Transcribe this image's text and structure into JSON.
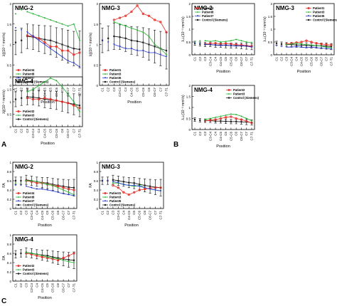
{
  "figure": {
    "panel_labels": [
      "A",
      "B",
      "C"
    ],
    "position_label": "Position",
    "levels": [
      "C1",
      "C2",
      "C3",
      "C3-C4",
      "C4",
      "C4-C5",
      "C5",
      "C5-C6",
      "C6",
      "C6-C7",
      "C7",
      "C7-T1"
    ],
    "colors": {
      "control": "#222222",
      "patient1": "#e8322a",
      "patient2": "#e8322a",
      "patient4": "#e8322a",
      "patient3": "#22b02e",
      "patient8": "#22b02e",
      "patient5": "#2a3ac8",
      "patient7": "#2a3ac8"
    }
  },
  "chart_data": [
    {
      "type": "line",
      "group": "A",
      "title": "NMG-2",
      "ylabel": "λ∥(10⁻³ mm²/s)",
      "xlabel": "Position",
      "ylim": [
        0,
        2
      ],
      "yticks": [
        0,
        0.5,
        1,
        1.5,
        2
      ],
      "legend_position": "bottom-left",
      "categories": [
        "C1",
        "C2",
        "C3",
        "C3-C4",
        "C4",
        "C4-C5",
        "C5",
        "C5-C6",
        "C6",
        "C6-C7",
        "C7",
        "C7-T1"
      ],
      "control": {
        "name": "Control (Siemens)",
        "values": [
          1.05,
          1.1,
          1.2,
          1.18,
          1.15,
          1.12,
          1.1,
          1.05,
          1.0,
          0.95,
          0.9,
          0.88
        ],
        "error": [
          0.3,
          0.3,
          0.3,
          0.3,
          0.32,
          0.34,
          0.35,
          0.36,
          0.38,
          0.4,
          0.42,
          0.45
        ]
      },
      "series": [
        {
          "name": "Patient4",
          "color_key": "patient4",
          "values": [
            null,
            null,
            1.22,
            1.2,
            1.15,
            1.05,
            0.95,
            0.95,
            0.85,
            0.85,
            0.75,
            0.8
          ]
        },
        {
          "name": "Patient8",
          "color_key": "patient8",
          "values": [
            1.75,
            1.85,
            1.8,
            1.75,
            1.7,
            1.65,
            1.6,
            1.55,
            1.5,
            1.45,
            1.5,
            1.1
          ]
        },
        {
          "name": "Patient7",
          "color_key": "patient7",
          "values": [
            1.4,
            1.35,
            1.3,
            1.2,
            1.1,
            1.0,
            0.9,
            0.8,
            0.7,
            0.6,
            0.55,
            0.45
          ]
        }
      ]
    },
    {
      "type": "line",
      "group": "A",
      "title": "NMG-3",
      "ylabel": "λ∥(10⁻³ mm²/s)",
      "xlabel": "Position",
      "ylim": [
        0,
        2
      ],
      "yticks": [
        0,
        0.5,
        1,
        1.5,
        2
      ],
      "legend_position": "bottom-left",
      "categories": [
        "C1",
        "C2",
        "C3",
        "C3-C4",
        "C4",
        "C4-C5",
        "C5",
        "C5-C6",
        "C6",
        "C6-C7",
        "C7",
        "C7-T1"
      ],
      "control": {
        "name": "Control (Siemens)",
        "values": [
          1.1,
          1.15,
          1.2,
          1.18,
          1.15,
          1.1,
          1.08,
          1.05,
          1.0,
          0.95,
          0.9,
          0.85
        ],
        "error": [
          0.3,
          0.3,
          0.32,
          0.3,
          0.32,
          0.34,
          0.35,
          0.36,
          0.38,
          0.4,
          0.42,
          0.45
        ]
      },
      "series": [
        {
          "name": "Patient1",
          "color_key": "patient1",
          "values": [
            null,
            null,
            1.6,
            1.65,
            1.7,
            1.8,
            1.95,
            1.75,
            1.7,
            1.6,
            1.55,
            1.3
          ]
        },
        {
          "name": "Patient3",
          "color_key": "patient3",
          "values": [
            null,
            null,
            1.55,
            1.5,
            1.45,
            1.4,
            1.35,
            1.3,
            1.2,
            1.0,
            0.9,
            0.75
          ]
        },
        {
          "name": "Patient5",
          "color_key": "patient5",
          "values": [
            1.1,
            1.05,
            1.0,
            0.95,
            0.9,
            0.9,
            0.85,
            0.85,
            0.8,
            0.8,
            0.75,
            0.7
          ]
        }
      ]
    },
    {
      "type": "line",
      "group": "A",
      "title": "NMG-4",
      "ylabel": "λ∥(10⁻³ mm²/s)",
      "xlabel": "Position",
      "ylim": [
        0,
        2
      ],
      "yticks": [
        0,
        0.5,
        1,
        1.5,
        2
      ],
      "legend_position": "bottom-left",
      "categories": [
        "C1",
        "C2",
        "C3",
        "C3-C4",
        "C4",
        "C4-C5",
        "C5",
        "C5-C6",
        "C6",
        "C6-C7",
        "C7",
        "C7-T1"
      ],
      "control": {
        "name": "Control (Siemens)",
        "values": [
          1.1,
          1.15,
          1.2,
          1.18,
          1.15,
          1.1,
          1.08,
          1.05,
          1.0,
          0.95,
          0.9,
          0.85
        ],
        "error": [
          0.3,
          0.3,
          0.32,
          0.3,
          0.32,
          0.34,
          0.35,
          0.36,
          0.38,
          0.4,
          0.42,
          0.45
        ]
      },
      "series": [
        {
          "name": "Patient2",
          "color_key": "patient2",
          "values": [
            null,
            null,
            1.15,
            1.1,
            1.1,
            1.15,
            1.1,
            1.05,
            1.0,
            0.95,
            0.85,
            0.75
          ]
        },
        {
          "name": "Patient3",
          "color_key": "patient3",
          "values": [
            null,
            null,
            1.4,
            1.5,
            1.65,
            1.8,
            1.95,
            1.85,
            1.6,
            1.3,
            1.0,
            0.6
          ]
        }
      ]
    },
    {
      "type": "line",
      "group": "B",
      "title": "NMG-2",
      "ylabel": "λ⊥(10⁻³ mm²/s)",
      "xlabel": "Position",
      "ylim": [
        0,
        2
      ],
      "yticks": [
        0,
        0.5,
        1,
        1.5,
        2
      ],
      "legend_position": "top-left",
      "categories": [
        "C1",
        "C2",
        "C3",
        "C3-C4",
        "C4",
        "C4-C5",
        "C5",
        "C5-C6",
        "C6",
        "C6-C7",
        "C7",
        "C7-T1"
      ],
      "control": {
        "name": "Control (Siemens)",
        "values": [
          0.45,
          0.42,
          0.4,
          0.4,
          0.38,
          0.38,
          0.37,
          0.36,
          0.36,
          0.35,
          0.34,
          0.32
        ],
        "error": [
          0.08,
          0.08,
          0.08,
          0.08,
          0.09,
          0.09,
          0.1,
          0.1,
          0.1,
          0.11,
          0.12,
          0.12
        ]
      },
      "series": [
        {
          "name": "Patient4",
          "color_key": "patient4",
          "values": [
            null,
            null,
            0.42,
            0.44,
            0.45,
            0.42,
            0.44,
            0.42,
            0.4,
            0.38,
            0.36,
            0.34
          ]
        },
        {
          "name": "Patient8",
          "color_key": "patient8",
          "values": [
            0.5,
            0.55,
            0.55,
            0.52,
            0.55,
            0.5,
            0.52,
            0.55,
            0.6,
            0.55,
            0.5,
            0.48
          ]
        },
        {
          "name": "Patient7",
          "color_key": "patient7",
          "values": [
            0.45,
            0.42,
            0.4,
            0.4,
            0.38,
            0.36,
            0.38,
            0.36,
            0.34,
            0.35,
            0.34,
            0.3
          ]
        }
      ]
    },
    {
      "type": "line",
      "group": "B",
      "title": "NMG-3",
      "ylabel": "λ⊥(10⁻³ mm²/s)",
      "xlabel": "Position",
      "ylim": [
        0,
        2
      ],
      "yticks": [
        0,
        0.5,
        1,
        1.5,
        2
      ],
      "legend_position": "top-right",
      "categories": [
        "C1",
        "C2",
        "C3",
        "C3-C4",
        "C4",
        "C4-C5",
        "C5",
        "C5-C6",
        "C6",
        "C6-C7",
        "C7",
        "C7-T1"
      ],
      "control": {
        "name": "Control (Siemens)",
        "values": [
          0.45,
          0.42,
          0.4,
          0.4,
          0.38,
          0.38,
          0.37,
          0.36,
          0.36,
          0.35,
          0.34,
          0.32
        ],
        "error": [
          0.08,
          0.08,
          0.08,
          0.08,
          0.09,
          0.09,
          0.1,
          0.1,
          0.1,
          0.11,
          0.12,
          0.12
        ]
      },
      "series": [
        {
          "name": "Patient1",
          "color_key": "patient1",
          "values": [
            null,
            null,
            0.42,
            0.45,
            0.48,
            0.5,
            0.55,
            0.5,
            0.45,
            0.42,
            0.4,
            0.38
          ]
        },
        {
          "name": "Patient3",
          "color_key": "patient3",
          "values": [
            null,
            null,
            0.4,
            0.42,
            0.45,
            0.42,
            0.4,
            0.38,
            0.36,
            0.34,
            0.3,
            0.28
          ]
        },
        {
          "name": "Patient5",
          "color_key": "patient5",
          "values": [
            0.35,
            0.32,
            0.3,
            0.3,
            0.32,
            0.3,
            0.28,
            0.3,
            0.28,
            0.26,
            0.25,
            0.22
          ]
        }
      ]
    },
    {
      "type": "line",
      "group": "B",
      "title": "NMG-4",
      "ylabel": "λ⊥(10⁻³ mm²/s)",
      "xlabel": "Position",
      "ylim": [
        0,
        2
      ],
      "yticks": [
        0,
        0.5,
        1,
        1.5,
        2
      ],
      "legend_position": "top-right",
      "categories": [
        "C1",
        "C2",
        "C3",
        "C3-C4",
        "C4",
        "C4-C5",
        "C5",
        "C5-C6",
        "C6",
        "C6-C7",
        "C7",
        "C7-T1"
      ],
      "control": {
        "name": "Control (Siemens)",
        "values": [
          0.45,
          0.42,
          0.4,
          0.4,
          0.38,
          0.38,
          0.37,
          0.36,
          0.36,
          0.35,
          0.34,
          0.32
        ],
        "error": [
          0.08,
          0.08,
          0.08,
          0.08,
          0.09,
          0.09,
          0.1,
          0.1,
          0.1,
          0.11,
          0.12,
          0.12
        ]
      },
      "series": [
        {
          "name": "Patient2",
          "color_key": "patient2",
          "values": [
            null,
            null,
            0.4,
            0.42,
            0.45,
            0.5,
            0.55,
            0.58,
            0.5,
            0.45,
            0.38,
            0.3
          ]
        },
        {
          "name": "Patient3",
          "color_key": "patient3",
          "values": [
            null,
            null,
            0.45,
            0.5,
            0.55,
            0.6,
            0.65,
            0.7,
            0.68,
            0.6,
            0.5,
            0.4
          ]
        }
      ]
    },
    {
      "type": "line",
      "group": "C",
      "title": "NMG-2",
      "ylabel": "FA",
      "xlabel": "Position",
      "ylim": [
        0,
        1
      ],
      "yticks": [
        0,
        0.2,
        0.4,
        0.6,
        0.8,
        1
      ],
      "legend_position": "bottom-left",
      "categories": [
        "C1",
        "C2",
        "C3",
        "C3-C4",
        "C4",
        "C4-C5",
        "C5",
        "C5-C6",
        "C6",
        "C6-C7",
        "C7",
        "C7-T1"
      ],
      "control": {
        "name": "Control (Siemens)",
        "values": [
          0.6,
          0.6,
          0.62,
          0.6,
          0.58,
          0.56,
          0.55,
          0.52,
          0.5,
          0.48,
          0.46,
          0.45
        ],
        "error": [
          0.08,
          0.08,
          0.1,
          0.1,
          0.1,
          0.11,
          0.12,
          0.13,
          0.14,
          0.15,
          0.16,
          0.18
        ]
      },
      "series": [
        {
          "name": "Patient4",
          "color_key": "patient4",
          "values": [
            null,
            null,
            0.6,
            0.58,
            0.55,
            0.55,
            0.52,
            0.5,
            0.48,
            0.45,
            0.42,
            0.4
          ]
        },
        {
          "name": "Patient8",
          "color_key": "patient8",
          "values": [
            0.55,
            0.55,
            0.6,
            0.6,
            0.58,
            0.55,
            0.52,
            0.5,
            0.45,
            0.4,
            0.35,
            0.3
          ]
        },
        {
          "name": "Patient7",
          "color_key": "patient7",
          "values": [
            0.5,
            0.5,
            0.48,
            0.45,
            0.42,
            0.42,
            0.4,
            0.38,
            0.35,
            0.32,
            0.3,
            0.28
          ]
        }
      ]
    },
    {
      "type": "line",
      "group": "C",
      "title": "NMG-3",
      "ylabel": "FA",
      "xlabel": "Position",
      "ylim": [
        0,
        1
      ],
      "yticks": [
        0,
        0.2,
        0.4,
        0.6,
        0.8,
        1
      ],
      "legend_position": "bottom-left",
      "categories": [
        "C1",
        "C2",
        "C3",
        "C3-C4",
        "C4",
        "C4-C5",
        "C5",
        "C5-C6",
        "C6",
        "C6-C7",
        "C7",
        "C7-T1"
      ],
      "control": {
        "name": "Control (Siemens)",
        "values": [
          0.6,
          0.6,
          0.62,
          0.6,
          0.58,
          0.56,
          0.55,
          0.52,
          0.5,
          0.48,
          0.46,
          0.45
        ],
        "error": [
          0.08,
          0.08,
          0.1,
          0.1,
          0.1,
          0.11,
          0.12,
          0.13,
          0.14,
          0.15,
          0.16,
          0.18
        ]
      },
      "series": [
        {
          "name": "Patient1",
          "color_key": "patient1",
          "values": [
            null,
            null,
            0.5,
            0.45,
            0.35,
            0.3,
            0.35,
            0.4,
            0.42,
            0.44,
            0.45,
            0.45
          ]
        },
        {
          "name": "Patient3",
          "color_key": "patient3",
          "values": [
            null,
            null,
            0.55,
            0.55,
            0.52,
            0.5,
            0.48,
            0.5,
            0.45,
            0.42,
            0.4,
            0.38
          ]
        },
        {
          "name": "Patient5",
          "color_key": "patient5",
          "values": [
            0.6,
            0.6,
            0.58,
            0.56,
            0.52,
            0.5,
            0.5,
            0.48,
            0.45,
            0.42,
            0.4,
            0.38
          ]
        }
      ]
    },
    {
      "type": "line",
      "group": "C",
      "title": "NMG-4",
      "ylabel": "FA",
      "xlabel": "Position",
      "ylim": [
        0,
        1
      ],
      "yticks": [
        0,
        0.2,
        0.4,
        0.6,
        0.8,
        1
      ],
      "legend_position": "bottom-left",
      "categories": [
        "C1",
        "C2",
        "C3",
        "C3-C4",
        "C4",
        "C4-C5",
        "C5",
        "C5-C6",
        "C6",
        "C6-C7",
        "C7",
        "C7-T1"
      ],
      "control": {
        "name": "Control (Siemens)",
        "values": [
          0.58,
          0.6,
          0.62,
          0.6,
          0.58,
          0.56,
          0.55,
          0.52,
          0.5,
          0.48,
          0.46,
          0.45
        ],
        "error": [
          0.08,
          0.08,
          0.1,
          0.1,
          0.1,
          0.11,
          0.12,
          0.13,
          0.14,
          0.15,
          0.16,
          0.18
        ]
      },
      "series": [
        {
          "name": "Patient2",
          "color_key": "patient2",
          "values": [
            null,
            null,
            0.6,
            0.58,
            0.55,
            0.52,
            0.5,
            0.48,
            0.45,
            0.5,
            0.55,
            0.6
          ]
        },
        {
          "name": "Patient3",
          "color_key": "patient3",
          "values": [
            null,
            null,
            0.62,
            0.6,
            0.58,
            0.55,
            0.52,
            0.5,
            0.48,
            0.45,
            0.42,
            0.4
          ]
        }
      ]
    }
  ]
}
